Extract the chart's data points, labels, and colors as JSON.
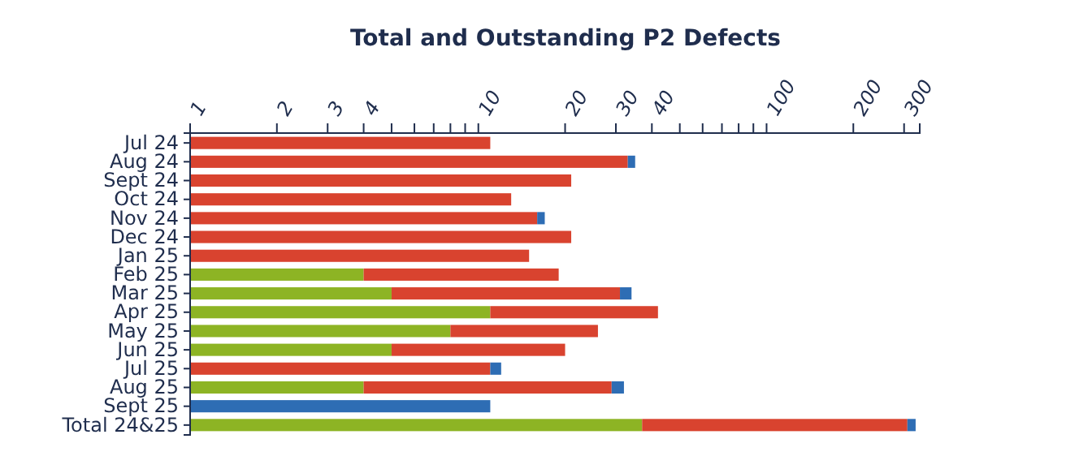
{
  "chart_data": {
    "type": "bar",
    "orientation": "horizontal",
    "stacked": true,
    "log": "x",
    "title": "Total and Outstanding P2 Defects",
    "categories": [
      "Jul 24",
      "Aug 24",
      "Sept 24",
      "Oct 24",
      "Nov 24",
      "Dec 24",
      "Jan 25",
      "Feb 25",
      "Mar 25",
      "Apr 25",
      "May 25",
      "Jun 25",
      "Jul 25",
      "Aug 25",
      "Sept 25",
      "Total 24&25"
    ],
    "series": [
      {
        "color": "#8db424",
        "values": [
          null,
          null,
          null,
          null,
          null,
          null,
          null,
          4,
          5,
          11,
          8,
          5,
          null,
          4,
          null,
          37
        ]
      },
      {
        "color": "#d9432f",
        "values": [
          11,
          33,
          21,
          13,
          16,
          21,
          15,
          15,
          26,
          31,
          18,
          15,
          11,
          25,
          null,
          271
        ]
      },
      {
        "color": "#2e6db4",
        "values": [
          null,
          2,
          null,
          null,
          1,
          null,
          null,
          null,
          3,
          null,
          null,
          null,
          1,
          3,
          11,
          21
        ]
      }
    ],
    "xlim": [
      1,
      340
    ],
    "xticks": [
      1,
      2,
      3,
      4,
      {
        "value": 5,
        "label": null
      },
      {
        "value": 6,
        "label": null
      },
      {
        "value": 7,
        "label": null
      },
      {
        "value": 8,
        "label": null
      },
      {
        "value": 9,
        "label": null
      },
      10,
      20,
      30,
      40,
      {
        "value": 50,
        "label": null
      },
      {
        "value": 60,
        "label": null
      },
      {
        "value": 70,
        "label": null
      },
      {
        "value": 80,
        "label": null
      },
      {
        "value": 90,
        "label": null
      },
      100,
      200,
      300
    ],
    "grid": false
  }
}
